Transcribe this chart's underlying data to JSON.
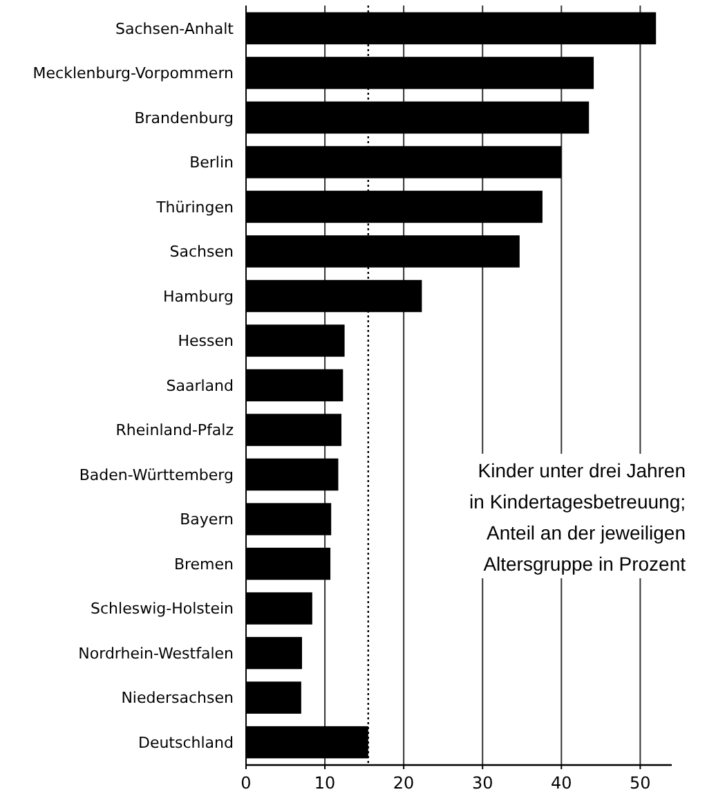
{
  "chart_data": {
    "type": "bar",
    "orientation": "horizontal",
    "categories": [
      "Sachsen-Anhalt",
      "Mecklenburg-Vorpommern",
      "Brandenburg",
      "Berlin",
      "Thüringen",
      "Sachsen",
      "Hamburg",
      "Hessen",
      "Saarland",
      "Rheinland-Pfalz",
      "Baden-Württemberg",
      "Bayern",
      "Bremen",
      "Schleswig-Holstein",
      "Nordrhein-Westfalen",
      "Niedersachsen",
      "Deutschland"
    ],
    "values": [
      52.0,
      44.1,
      43.5,
      40.0,
      37.6,
      34.7,
      22.3,
      12.5,
      12.3,
      12.1,
      11.7,
      10.8,
      10.7,
      8.4,
      7.1,
      7.0,
      15.5
    ],
    "color": "#000000",
    "xlim": [
      0,
      54
    ],
    "xticks": [
      0,
      10,
      20,
      30,
      40,
      50
    ],
    "grid": "x",
    "ref_lines": [
      {
        "axis": "x",
        "value": 15.5,
        "color": "#000000",
        "line_style": "dotted"
      }
    ],
    "annotations": [
      "Kinder unter drei Jahren\nin Kindertagesbetreuung;\nAnteil an der jeweiligen\nAltersgruppe in Prozent"
    ]
  }
}
